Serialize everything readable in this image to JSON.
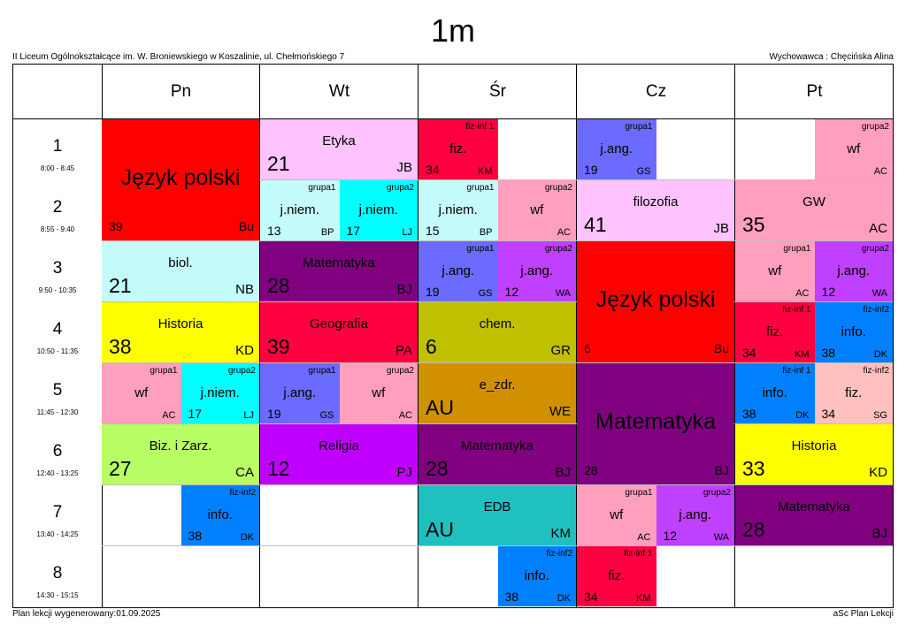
{
  "header": {
    "title": "1m",
    "school": "II Liceum Ogólnokształcące im. W. Broniewskiego w Koszalinie, ul. Chełmońskiego 7",
    "teacher": "Wychowawca : Chęcińska Alina"
  },
  "footer": {
    "generated": "Plan lekcji wygenerowany:01.09.2025",
    "software": "aSc Plan Lekcji"
  },
  "days": [
    "Pn",
    "Wt",
    "Śr",
    "Cz",
    "Pt"
  ],
  "periods": [
    {
      "num": "1",
      "time": "8:00 - 8:45"
    },
    {
      "num": "2",
      "time": "8:55 - 9:40"
    },
    {
      "num": "3",
      "time": "9:50 - 10:35"
    },
    {
      "num": "4",
      "time": "10:50 - 11:35"
    },
    {
      "num": "5",
      "time": "11:45 - 12:30"
    },
    {
      "num": "6",
      "time": "12:40 - 13:25"
    },
    {
      "num": "7",
      "time": "13:40 - 14:25"
    },
    {
      "num": "8",
      "time": "14:30 - 15:15"
    }
  ],
  "lessons": [
    {
      "day": 0,
      "p": 0,
      "span": 2,
      "half": 0,
      "size": "huge",
      "color": "#ff0000",
      "subject": "Język polski",
      "room": "39",
      "teacher": "Bu",
      "group": ""
    },
    {
      "day": 0,
      "p": 2,
      "span": 1,
      "half": 0,
      "size": "big",
      "color": "#c4fbfb",
      "subject": "biol.",
      "room": "21",
      "teacher": "NB",
      "group": ""
    },
    {
      "day": 0,
      "p": 3,
      "span": 1,
      "half": 0,
      "size": "big",
      "color": "#ffff00",
      "subject": "Historia",
      "room": "38",
      "teacher": "KD",
      "group": ""
    },
    {
      "day": 0,
      "p": 4,
      "span": 1,
      "half": 1,
      "size": "small",
      "color": "#ff9fbe",
      "subject": "wf",
      "room": "",
      "teacher": "AC",
      "group": "grupa1"
    },
    {
      "day": 0,
      "p": 4,
      "span": 1,
      "half": 2,
      "size": "small",
      "color": "#00ffff",
      "subject": "j.niem.",
      "room": "17",
      "teacher": "LJ",
      "group": "grupa2"
    },
    {
      "day": 0,
      "p": 5,
      "span": 1,
      "half": 0,
      "size": "big",
      "color": "#b8ff66",
      "subject": "Biz. i Zarz.",
      "room": "27",
      "teacher": "CA",
      "group": ""
    },
    {
      "day": 0,
      "p": 6,
      "span": 1,
      "half": 2,
      "size": "small",
      "color": "#0080ff",
      "subject": "info.",
      "room": "38",
      "teacher": "DK",
      "group": "fiz-inf2"
    },
    {
      "day": 1,
      "p": 0,
      "span": 1,
      "half": 0,
      "size": "big",
      "color": "#ffc4ff",
      "subject": "Etyka",
      "room": "21",
      "teacher": "JB",
      "group": ""
    },
    {
      "day": 1,
      "p": 1,
      "span": 1,
      "half": 1,
      "size": "small",
      "color": "#c4fbfb",
      "subject": "j.niem.",
      "room": "13",
      "teacher": "BP",
      "group": "grupa1"
    },
    {
      "day": 1,
      "p": 1,
      "span": 1,
      "half": 2,
      "size": "small",
      "color": "#00ffff",
      "subject": "j.niem.",
      "room": "17",
      "teacher": "LJ",
      "group": "grupa2"
    },
    {
      "day": 1,
      "p": 2,
      "span": 1,
      "half": 0,
      "size": "big",
      "color": "#800080",
      "subject": "Matematyka",
      "room": "28",
      "teacher": "BJ",
      "group": ""
    },
    {
      "day": 1,
      "p": 3,
      "span": 1,
      "half": 0,
      "size": "big",
      "color": "#ff0040",
      "subject": "Geografia",
      "room": "39",
      "teacher": "PA",
      "group": ""
    },
    {
      "day": 1,
      "p": 4,
      "span": 1,
      "half": 1,
      "size": "small",
      "color": "#6b6bff",
      "subject": "j.ang.",
      "room": "19",
      "teacher": "GS",
      "group": "grupa1"
    },
    {
      "day": 1,
      "p": 4,
      "span": 1,
      "half": 2,
      "size": "small",
      "color": "#ff9fbe",
      "subject": "wf",
      "room": "",
      "teacher": "AC",
      "group": "grupa2"
    },
    {
      "day": 1,
      "p": 5,
      "span": 1,
      "half": 0,
      "size": "big",
      "color": "#c000ff",
      "subject": "Religia",
      "room": "12",
      "teacher": "PJ",
      "group": ""
    },
    {
      "day": 2,
      "p": 0,
      "span": 1,
      "half": 1,
      "size": "small",
      "color": "#ff0040",
      "subject": "fiz.",
      "room": "34",
      "teacher": "KM",
      "group": "fiz-inf 1"
    },
    {
      "day": 2,
      "p": 1,
      "span": 1,
      "half": 1,
      "size": "small",
      "color": "#c4fbfb",
      "subject": "j.niem.",
      "room": "15",
      "teacher": "BP",
      "group": "grupa1"
    },
    {
      "day": 2,
      "p": 1,
      "span": 1,
      "half": 2,
      "size": "small",
      "color": "#ff9fbe",
      "subject": "wf",
      "room": "",
      "teacher": "AC",
      "group": "grupa2"
    },
    {
      "day": 2,
      "p": 2,
      "span": 1,
      "half": 1,
      "size": "small",
      "color": "#6b6bff",
      "subject": "j.ang.",
      "room": "19",
      "teacher": "GS",
      "group": "grupa1"
    },
    {
      "day": 2,
      "p": 2,
      "span": 1,
      "half": 2,
      "size": "small",
      "color": "#bf40ff",
      "subject": "j.ang.",
      "room": "12",
      "teacher": "WA",
      "group": "grupa2"
    },
    {
      "day": 2,
      "p": 3,
      "span": 1,
      "half": 0,
      "size": "big",
      "color": "#c0c000",
      "subject": "chem.",
      "room": "6",
      "teacher": "GR",
      "group": ""
    },
    {
      "day": 2,
      "p": 4,
      "span": 1,
      "half": 0,
      "size": "big",
      "color": "#d09000",
      "subject": "e_zdr.",
      "room": "AU",
      "teacher": "WE",
      "group": ""
    },
    {
      "day": 2,
      "p": 5,
      "span": 1,
      "half": 0,
      "size": "big",
      "color": "#800080",
      "subject": "Matematyka",
      "room": "28",
      "teacher": "BJ",
      "group": ""
    },
    {
      "day": 2,
      "p": 6,
      "span": 1,
      "half": 0,
      "size": "big",
      "color": "#20c0c0",
      "subject": "EDB",
      "room": "AU",
      "teacher": "KM",
      "group": ""
    },
    {
      "day": 2,
      "p": 7,
      "span": 1,
      "half": 2,
      "size": "small",
      "color": "#0080ff",
      "subject": "info.",
      "room": "38",
      "teacher": "DK",
      "group": "fiz-inf2"
    },
    {
      "day": 3,
      "p": 0,
      "span": 1,
      "half": 1,
      "size": "small",
      "color": "#6b6bff",
      "subject": "j.ang.",
      "room": "19",
      "teacher": "GS",
      "group": "grupa1"
    },
    {
      "day": 3,
      "p": 1,
      "span": 1,
      "half": 0,
      "size": "big",
      "color": "#ffc4ff",
      "subject": "filozofia",
      "room": "41",
      "teacher": "JB",
      "group": ""
    },
    {
      "day": 3,
      "p": 2,
      "span": 2,
      "half": 0,
      "size": "huge",
      "color": "#ff0000",
      "subject": "Język polski",
      "room": "6",
      "teacher": "Bu",
      "group": ""
    },
    {
      "day": 3,
      "p": 4,
      "span": 2,
      "half": 0,
      "size": "huge",
      "color": "#800080",
      "subject": "Matematyka",
      "room": "28",
      "teacher": "BJ",
      "group": ""
    },
    {
      "day": 3,
      "p": 6,
      "span": 1,
      "half": 1,
      "size": "small",
      "color": "#ff9fbe",
      "subject": "wf",
      "room": "",
      "teacher": "AC",
      "group": "grupa1"
    },
    {
      "day": 3,
      "p": 6,
      "span": 1,
      "half": 2,
      "size": "small",
      "color": "#bf40ff",
      "subject": "j.ang.",
      "room": "12",
      "teacher": "WA",
      "group": "grupa2"
    },
    {
      "day": 3,
      "p": 7,
      "span": 1,
      "half": 1,
      "size": "small",
      "color": "#ff0040",
      "subject": "fiz.",
      "room": "34",
      "teacher": "KM",
      "group": "fiz-inf 1"
    },
    {
      "day": 4,
      "p": 0,
      "span": 1,
      "half": 2,
      "size": "small",
      "color": "#ff9fbe",
      "subject": "wf",
      "room": "",
      "teacher": "AC",
      "group": "grupa2"
    },
    {
      "day": 4,
      "p": 1,
      "span": 1,
      "half": 0,
      "size": "big",
      "color": "#ff9fbe",
      "subject": "GW",
      "room": "35",
      "teacher": "AC",
      "group": ""
    },
    {
      "day": 4,
      "p": 2,
      "span": 1,
      "half": 1,
      "size": "small",
      "color": "#ff9fbe",
      "subject": "wf",
      "room": "",
      "teacher": "AC",
      "group": "grupa1"
    },
    {
      "day": 4,
      "p": 2,
      "span": 1,
      "half": 2,
      "size": "small",
      "color": "#bf40ff",
      "subject": "j.ang.",
      "room": "12",
      "teacher": "WA",
      "group": "grupa2"
    },
    {
      "day": 4,
      "p": 3,
      "span": 1,
      "half": 1,
      "size": "small",
      "color": "#ff0040",
      "subject": "fiz.",
      "room": "34",
      "teacher": "KM",
      "group": "fiz-inf 1"
    },
    {
      "day": 4,
      "p": 3,
      "span": 1,
      "half": 2,
      "size": "small",
      "color": "#0080ff",
      "subject": "info.",
      "room": "38",
      "teacher": "DK",
      "group": "fiz-inf2"
    },
    {
      "day": 4,
      "p": 4,
      "span": 1,
      "half": 1,
      "size": "small",
      "color": "#0080ff",
      "subject": "info.",
      "room": "38",
      "teacher": "DK",
      "group": "fiz-inf 1"
    },
    {
      "day": 4,
      "p": 4,
      "span": 1,
      "half": 2,
      "size": "small",
      "color": "#ffc0c0",
      "subject": "fiz.",
      "room": "34",
      "teacher": "SG",
      "group": "fiz-inf2"
    },
    {
      "day": 4,
      "p": 5,
      "span": 1,
      "half": 0,
      "size": "big",
      "color": "#ffff00",
      "subject": "Historia",
      "room": "33",
      "teacher": "KD",
      "group": ""
    },
    {
      "day": 4,
      "p": 6,
      "span": 1,
      "half": 0,
      "size": "big",
      "color": "#800080",
      "subject": "Matematyka",
      "room": "28",
      "teacher": "BJ",
      "group": ""
    }
  ]
}
